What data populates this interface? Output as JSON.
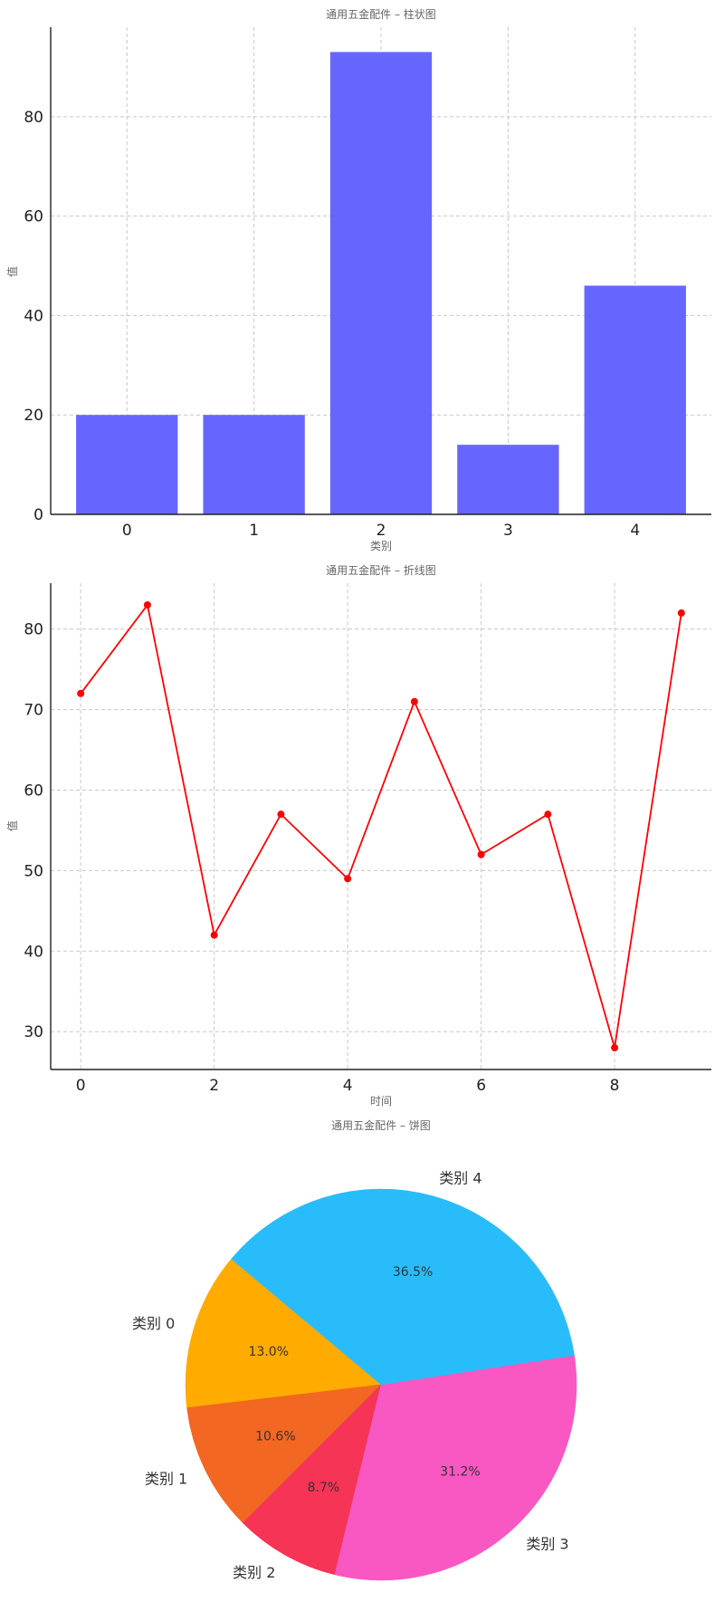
{
  "chart_data": [
    {
      "type": "bar",
      "title": "通用五金配件 – 柱状图",
      "xlabel": "类别",
      "ylabel": "值",
      "categories": [
        "0",
        "1",
        "2",
        "3",
        "4"
      ],
      "values": [
        20,
        20,
        93,
        14,
        46
      ],
      "ylim": [
        0,
        98
      ],
      "yticks": [
        0,
        20,
        40,
        60,
        80
      ],
      "grid": true,
      "color": "#6666ff"
    },
    {
      "type": "line",
      "title": "通用五金配件 – 折线图",
      "xlabel": "时间",
      "ylabel": "值",
      "x": [
        0,
        1,
        2,
        3,
        4,
        5,
        6,
        7,
        8,
        9
      ],
      "values": [
        72,
        83,
        42,
        57,
        49,
        71,
        52,
        57,
        28,
        82
      ],
      "xlim": [
        -0.45,
        9.45
      ],
      "ylim": [
        25.3,
        85.7
      ],
      "xticks": [
        0,
        2,
        4,
        6,
        8
      ],
      "yticks": [
        30,
        40,
        50,
        60,
        70,
        80
      ],
      "grid": true,
      "color": "#ff0000"
    },
    {
      "type": "pie",
      "title": "通用五金配件 – 饼图",
      "labels": [
        "类别 0",
        "类别 1",
        "类别 2",
        "类别 3",
        "类别 4"
      ],
      "values": [
        13.0,
        10.6,
        8.7,
        31.2,
        36.5
      ],
      "percent_labels": [
        "13.0%",
        "10.6%",
        "8.7%",
        "31.2%",
        "36.5%"
      ],
      "colors": [
        "#ffab00",
        "#f26722",
        "#f53456",
        "#f957c1",
        "#29bcfb"
      ],
      "start_angle_deg": 140
    }
  ]
}
